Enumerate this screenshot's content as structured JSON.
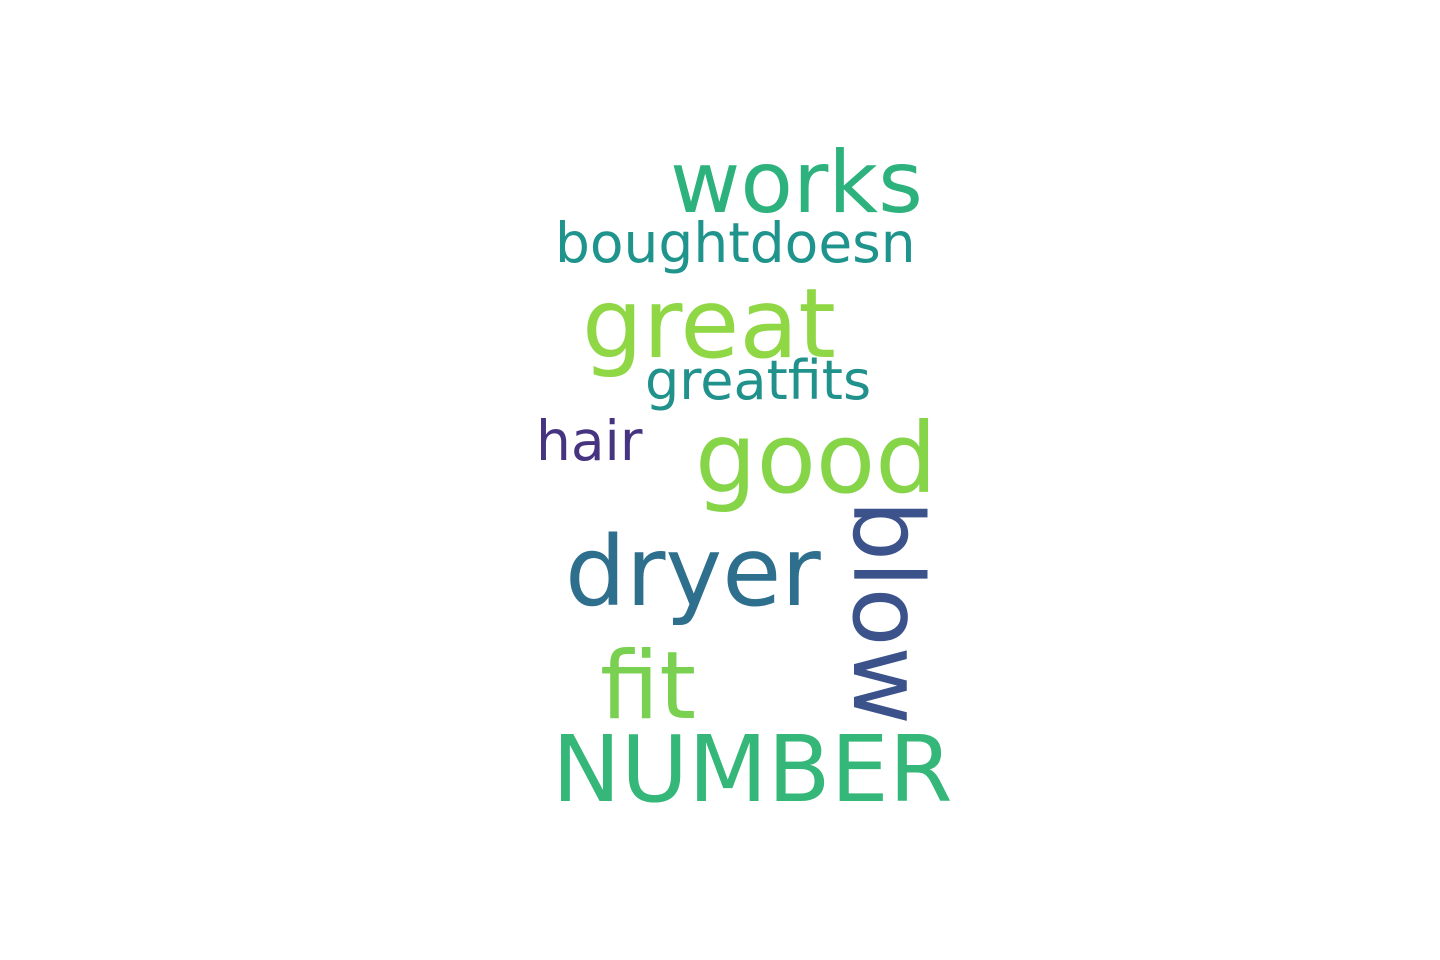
{
  "words": {
    "works": "works",
    "boughtdoesn": "boughtdoesn",
    "great": "great",
    "greatfits": "greatfits",
    "hair": "hair",
    "good": "good",
    "dryer": "dryer",
    "blow": "blow",
    "fit": "fit",
    "number": "NUMBER"
  },
  "colors": {
    "works": "#2db27d",
    "boughtdoesn": "#1f948c",
    "great": "#8fd744",
    "greatfits": "#21918c",
    "hair": "#463480",
    "good": "#86d549",
    "dryer": "#2e6f8e",
    "blow": "#3b528b",
    "fit": "#7ad151",
    "number": "#35b779",
    "background": "#ffffff"
  }
}
